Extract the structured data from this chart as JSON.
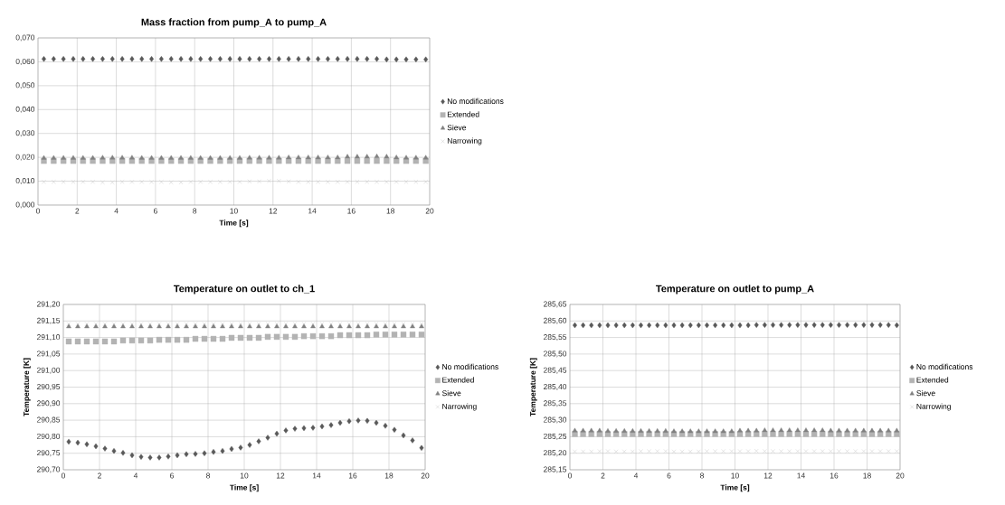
{
  "chart_data": [
    {
      "type": "scatter",
      "title": "Mass fraction from pump_A to pump_A",
      "xlabel": "Time [s]",
      "grid": true,
      "legend": "right",
      "x": [
        0.3,
        0.8,
        1.3,
        1.8,
        2.3,
        2.8,
        3.3,
        3.8,
        4.3,
        4.8,
        5.3,
        5.8,
        6.3,
        6.8,
        7.3,
        7.8,
        8.3,
        8.8,
        9.3,
        9.8,
        10.3,
        10.8,
        11.3,
        11.8,
        12.3,
        12.8,
        13.3,
        13.8,
        14.3,
        14.8,
        15.3,
        15.8,
        16.3,
        16.8,
        17.3,
        17.8,
        18.3,
        18.8,
        19.3,
        19.8
      ],
      "xlim": [
        0,
        20
      ],
      "xticks": [
        0,
        2,
        4,
        6,
        8,
        10,
        12,
        14,
        16,
        18,
        20
      ],
      "ylim": [
        0,
        0.07
      ],
      "yticks": [
        {
          "value": 0,
          "label": "0,000"
        },
        {
          "value": 0.01,
          "label": "0,010"
        },
        {
          "value": 0.02,
          "label": "0,020"
        },
        {
          "value": 0.03,
          "label": "0,030"
        },
        {
          "value": 0.04,
          "label": "0,040"
        },
        {
          "value": 0.05,
          "label": "0,050"
        },
        {
          "value": 0.06,
          "label": "0,060"
        },
        {
          "value": 0.07,
          "label": "0,070"
        }
      ],
      "series": [
        {
          "name": "No modifications",
          "color": "#595959",
          "marker": "diamond",
          "values": [
            0.0612,
            0.0612,
            0.0612,
            0.0612,
            0.0612,
            0.0612,
            0.0612,
            0.0612,
            0.0612,
            0.0612,
            0.0612,
            0.0612,
            0.0612,
            0.0612,
            0.0612,
            0.0612,
            0.0612,
            0.0612,
            0.0612,
            0.0612,
            0.0612,
            0.0612,
            0.0612,
            0.0612,
            0.0612,
            0.0612,
            0.0612,
            0.0612,
            0.0612,
            0.0612,
            0.0612,
            0.0612,
            0.0612,
            0.0612,
            0.0612,
            0.061,
            0.061,
            0.061,
            0.061,
            0.061
          ]
        },
        {
          "name": "Extended",
          "color": "#b3b3b3",
          "marker": "square",
          "values": [
            0.0185,
            0.0185,
            0.0185,
            0.0185,
            0.0185,
            0.0185,
            0.0185,
            0.0185,
            0.0185,
            0.0185,
            0.0185,
            0.0185,
            0.0185,
            0.0185,
            0.0185,
            0.0185,
            0.0185,
            0.0185,
            0.0185,
            0.0185,
            0.0185,
            0.0185,
            0.0185,
            0.0185,
            0.0185,
            0.0185,
            0.0185,
            0.0185,
            0.0185,
            0.0185,
            0.0185,
            0.0185,
            0.0185,
            0.0185,
            0.0185,
            0.0185,
            0.0185,
            0.0185,
            0.0185,
            0.0185
          ]
        },
        {
          "name": "Sieve",
          "color": "#808080",
          "marker": "triangle",
          "values": [
            0.0197,
            0.0197,
            0.0197,
            0.0197,
            0.0197,
            0.0197,
            0.0198,
            0.0198,
            0.0198,
            0.0198,
            0.0197,
            0.0197,
            0.0197,
            0.0197,
            0.0197,
            0.0197,
            0.0197,
            0.0197,
            0.0197,
            0.0197,
            0.0197,
            0.0198,
            0.0198,
            0.0198,
            0.0198,
            0.0199,
            0.0199,
            0.0199,
            0.0199,
            0.0199,
            0.0199,
            0.0202,
            0.0202,
            0.0202,
            0.0203,
            0.0202,
            0.0199,
            0.0198,
            0.0198,
            0.0198
          ]
        },
        {
          "name": "Narrowing",
          "color": "#bfbfbf",
          "marker": "cross",
          "values": [
            0.0097,
            0.0097,
            0.0097,
            0.0097,
            0.0097,
            0.0097,
            0.0095,
            0.0095,
            0.0097,
            0.0097,
            0.0097,
            0.0097,
            0.0097,
            0.0095,
            0.0095,
            0.0097,
            0.0097,
            0.0097,
            0.0097,
            0.0097,
            0.0097,
            0.0099,
            0.0099,
            0.0101,
            0.0101,
            0.0099,
            0.0097,
            0.0097,
            0.0097,
            0.0097,
            0.0097,
            0.0097,
            0.0097,
            0.0097,
            0.0097,
            0.0097,
            0.0097,
            0.0097,
            0.0097,
            0.0097
          ]
        }
      ]
    },
    {
      "type": "scatter",
      "title": "Temperature on outlet to ch_1",
      "xlabel": "Time [s]",
      "ylabel": "Temperature [K]",
      "grid": true,
      "legend": "right",
      "x": [
        0.3,
        0.8,
        1.3,
        1.8,
        2.3,
        2.8,
        3.3,
        3.8,
        4.3,
        4.8,
        5.3,
        5.8,
        6.3,
        6.8,
        7.3,
        7.8,
        8.3,
        8.8,
        9.3,
        9.8,
        10.3,
        10.8,
        11.3,
        11.8,
        12.3,
        12.8,
        13.3,
        13.8,
        14.3,
        14.8,
        15.3,
        15.8,
        16.3,
        16.8,
        17.3,
        17.8,
        18.3,
        18.8,
        19.3,
        19.8
      ],
      "xlim": [
        0,
        20
      ],
      "xticks": [
        0,
        2,
        4,
        6,
        8,
        10,
        12,
        14,
        16,
        18,
        20
      ],
      "ylim": [
        290.7,
        291.2
      ],
      "yticks": [
        {
          "value": 290.7,
          "label": "290,70"
        },
        {
          "value": 290.75,
          "label": "290,75"
        },
        {
          "value": 290.8,
          "label": "290,80"
        },
        {
          "value": 290.85,
          "label": "290,85"
        },
        {
          "value": 290.9,
          "label": "290,90"
        },
        {
          "value": 290.95,
          "label": "290,95"
        },
        {
          "value": 291.0,
          "label": "291,00"
        },
        {
          "value": 291.05,
          "label": "291,05"
        },
        {
          "value": 291.1,
          "label": "291,10"
        },
        {
          "value": 291.15,
          "label": "291,15"
        },
        {
          "value": 291.2,
          "label": "291,20"
        }
      ],
      "series": [
        {
          "name": "No modifications",
          "color": "#595959",
          "marker": "diamond",
          "values": [
            290.785,
            290.782,
            290.777,
            290.771,
            290.764,
            290.757,
            290.751,
            290.744,
            290.739,
            290.737,
            290.737,
            290.74,
            290.744,
            290.747,
            290.748,
            290.75,
            290.754,
            290.757,
            290.763,
            290.767,
            290.775,
            290.786,
            290.797,
            290.809,
            290.819,
            290.824,
            290.826,
            290.827,
            290.831,
            290.835,
            290.842,
            290.847,
            290.849,
            290.848,
            290.842,
            290.833,
            290.821,
            290.804,
            290.789,
            290.766
          ]
        },
        {
          "name": "Extended",
          "color": "#b3b3b3",
          "marker": "square",
          "values": [
            291.088,
            291.088,
            291.088,
            291.088,
            291.088,
            291.088,
            291.091,
            291.091,
            291.091,
            291.091,
            291.093,
            291.093,
            291.093,
            291.093,
            291.096,
            291.096,
            291.096,
            291.096,
            291.099,
            291.099,
            291.099,
            291.099,
            291.102,
            291.102,
            291.102,
            291.102,
            291.104,
            291.104,
            291.104,
            291.104,
            291.107,
            291.107,
            291.107,
            291.107,
            291.109,
            291.109,
            291.109,
            291.109,
            291.109,
            291.109
          ]
        },
        {
          "name": "Sieve",
          "color": "#808080",
          "marker": "triangle",
          "values": [
            291.133,
            291.133,
            291.133,
            291.133,
            291.133,
            291.133,
            291.133,
            291.133,
            291.133,
            291.133,
            291.133,
            291.133,
            291.133,
            291.133,
            291.133,
            291.133,
            291.133,
            291.133,
            291.133,
            291.133,
            291.133,
            291.133,
            291.133,
            291.133,
            291.133,
            291.133,
            291.133,
            291.133,
            291.133,
            291.133,
            291.133,
            291.133,
            291.133,
            291.133,
            291.133,
            291.133,
            291.133,
            291.133,
            291.133,
            291.133
          ]
        },
        {
          "name": "Narrowing",
          "color": "#bfbfbf",
          "marker": "cross",
          "values": [
            291.141,
            291.141,
            291.141,
            291.141,
            291.141,
            291.141,
            291.141,
            291.141,
            291.141,
            291.141,
            291.141,
            291.141,
            291.141,
            291.141,
            291.141,
            291.141,
            291.141,
            291.141,
            291.141,
            291.141,
            291.141,
            291.141,
            291.141,
            291.141,
            291.141,
            291.141,
            291.141,
            291.141,
            291.141,
            291.141,
            291.141,
            291.141,
            291.141,
            291.141,
            291.141,
            291.141,
            291.141,
            291.141,
            291.141,
            291.141
          ]
        }
      ]
    },
    {
      "type": "scatter",
      "title": "Temperature on outlet to pump_A",
      "xlabel": "Time [s]",
      "ylabel": "Temperature [K]",
      "grid": true,
      "legend": "right",
      "x": [
        0.3,
        0.8,
        1.3,
        1.8,
        2.3,
        2.8,
        3.3,
        3.8,
        4.3,
        4.8,
        5.3,
        5.8,
        6.3,
        6.8,
        7.3,
        7.8,
        8.3,
        8.8,
        9.3,
        9.8,
        10.3,
        10.8,
        11.3,
        11.8,
        12.3,
        12.8,
        13.3,
        13.8,
        14.3,
        14.8,
        15.3,
        15.8,
        16.3,
        16.8,
        17.3,
        17.8,
        18.3,
        18.8,
        19.3,
        19.8
      ],
      "xlim": [
        0,
        20
      ],
      "xticks": [
        0,
        2,
        4,
        6,
        8,
        10,
        12,
        14,
        16,
        18,
        20
      ],
      "ylim": [
        285.15,
        285.65
      ],
      "yticks": [
        {
          "value": 285.15,
          "label": "285,15"
        },
        {
          "value": 285.2,
          "label": "285,20"
        },
        {
          "value": 285.25,
          "label": "285,25"
        },
        {
          "value": 285.3,
          "label": "285,30"
        },
        {
          "value": 285.35,
          "label": "285,35"
        },
        {
          "value": 285.4,
          "label": "285,40"
        },
        {
          "value": 285.45,
          "label": "285,45"
        },
        {
          "value": 285.5,
          "label": "285,50"
        },
        {
          "value": 285.55,
          "label": "285,55"
        },
        {
          "value": 285.6,
          "label": "285,60"
        },
        {
          "value": 285.65,
          "label": "285,65"
        }
      ],
      "series": [
        {
          "name": "No modifications",
          "color": "#595959",
          "marker": "diamond",
          "values": [
            285.587,
            285.587,
            285.587,
            285.587,
            285.587,
            285.587,
            285.587,
            285.587,
            285.587,
            285.587,
            285.587,
            285.587,
            285.587,
            285.587,
            285.587,
            285.587,
            285.587,
            285.587,
            285.587,
            285.587,
            285.587,
            285.587,
            285.588,
            285.588,
            285.588,
            285.588,
            285.588,
            285.588,
            285.588,
            285.588,
            285.588,
            285.588,
            285.588,
            285.588,
            285.588,
            285.588,
            285.588,
            285.588,
            285.588,
            285.587
          ]
        },
        {
          "name": "Extended",
          "color": "#b3b3b3",
          "marker": "square",
          "values": [
            285.258,
            285.258,
            285.258,
            285.258,
            285.258,
            285.258,
            285.258,
            285.258,
            285.258,
            285.258,
            285.258,
            285.258,
            285.258,
            285.258,
            285.258,
            285.258,
            285.258,
            285.258,
            285.258,
            285.258,
            285.258,
            285.258,
            285.258,
            285.258,
            285.258,
            285.258,
            285.258,
            285.258,
            285.258,
            285.258,
            285.258,
            285.258,
            285.258,
            285.258,
            285.258,
            285.258,
            285.258,
            285.258,
            285.258,
            285.258
          ]
        },
        {
          "name": "Sieve",
          "color": "#808080",
          "marker": "triangle",
          "values": [
            285.268,
            285.268,
            285.268,
            285.268,
            285.267,
            285.267,
            285.267,
            285.267,
            285.267,
            285.267,
            285.267,
            285.267,
            285.266,
            285.266,
            285.266,
            285.266,
            285.266,
            285.266,
            285.266,
            285.266,
            285.268,
            285.268,
            285.268,
            285.269,
            285.269,
            285.269,
            285.269,
            285.269,
            285.269,
            285.269,
            285.269,
            285.268,
            285.268,
            285.268,
            285.268,
            285.268,
            285.268,
            285.268,
            285.268,
            285.268
          ]
        },
        {
          "name": "Narrowing",
          "color": "#bfbfbf",
          "marker": "cross",
          "values": [
            285.205,
            285.205,
            285.205,
            285.206,
            285.206,
            285.205,
            285.205,
            285.205,
            285.206,
            285.206,
            285.206,
            285.206,
            285.205,
            285.205,
            285.205,
            285.205,
            285.206,
            285.206,
            285.206,
            285.206,
            285.206,
            285.206,
            285.207,
            285.206,
            285.206,
            285.206,
            285.206,
            285.206,
            285.206,
            285.206,
            285.206,
            285.206,
            285.206,
            285.206,
            285.206,
            285.206,
            285.206,
            285.206,
            285.206,
            285.206
          ]
        }
      ]
    }
  ]
}
